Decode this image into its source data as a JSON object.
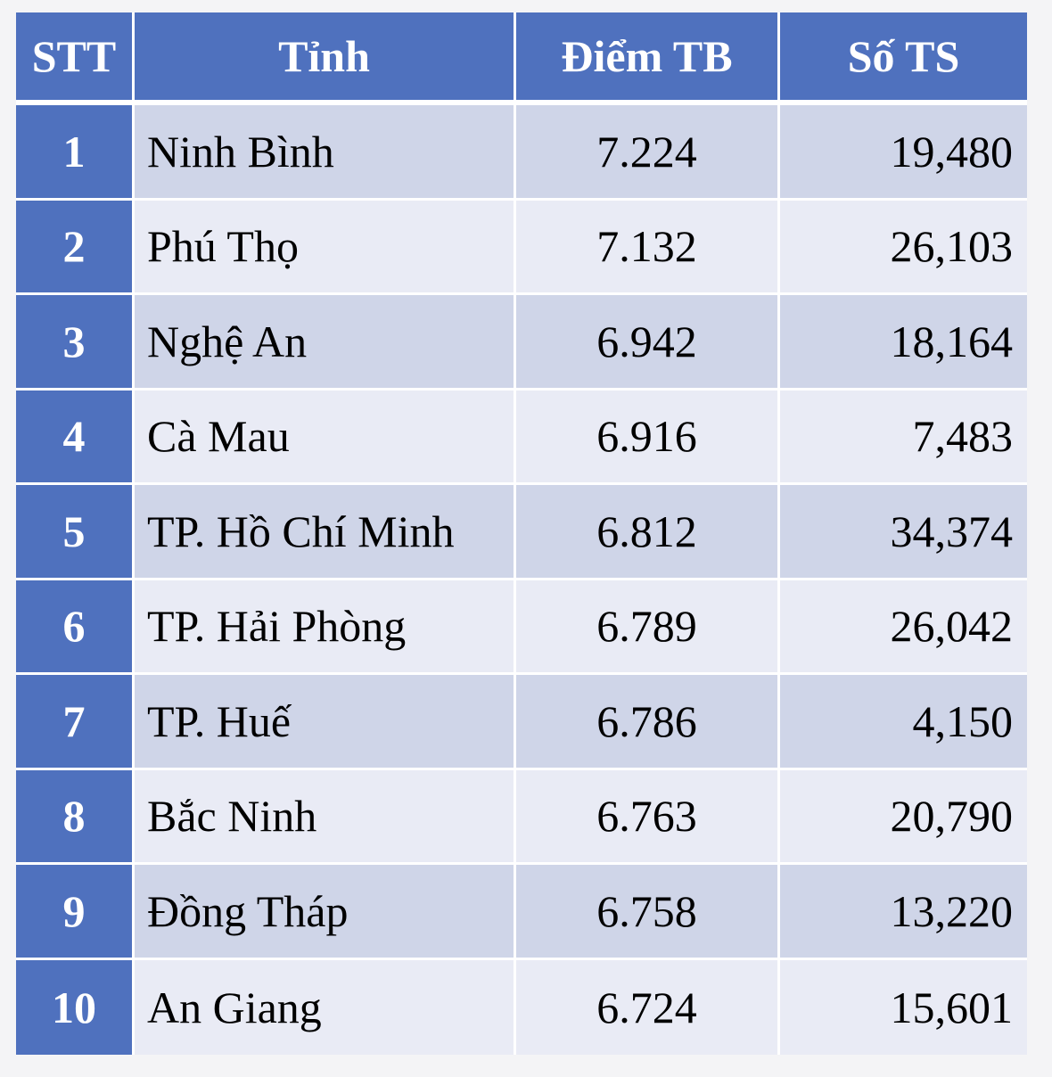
{
  "table": {
    "headers": [
      "STT",
      "Tỉnh",
      "Điểm TB",
      "Số TS"
    ],
    "rows": [
      {
        "stt": "1",
        "tinh": "Ninh Bình",
        "diem": "7.224",
        "sots": "19,480"
      },
      {
        "stt": "2",
        "tinh": "Phú Thọ",
        "diem": "7.132",
        "sots": "26,103"
      },
      {
        "stt": "3",
        "tinh": "Nghệ An",
        "diem": "6.942",
        "sots": "18,164"
      },
      {
        "stt": "4",
        "tinh": "Cà Mau",
        "diem": "6.916",
        "sots": "7,483"
      },
      {
        "stt": "5",
        "tinh": "TP. Hồ Chí Minh",
        "diem": "6.812",
        "sots": "34,374"
      },
      {
        "stt": "6",
        "tinh": "TP. Hải Phòng",
        "diem": "6.789",
        "sots": "26,042"
      },
      {
        "stt": "7",
        "tinh": "TP. Huế",
        "diem": "6.786",
        "sots": "4,150"
      },
      {
        "stt": "8",
        "tinh": "Bắc Ninh",
        "diem": "6.763",
        "sots": "20,790"
      },
      {
        "stt": "9",
        "tinh": "Đồng Tháp",
        "diem": "6.758",
        "sots": "13,220"
      },
      {
        "stt": "10",
        "tinh": "An Giang",
        "diem": "6.724",
        "sots": "15,601"
      }
    ]
  },
  "colors": {
    "header_bg": "#4f71be",
    "row_dark": "#cfd5e8",
    "row_light": "#e9ebf5",
    "page_bg": "#f4f4f6"
  }
}
